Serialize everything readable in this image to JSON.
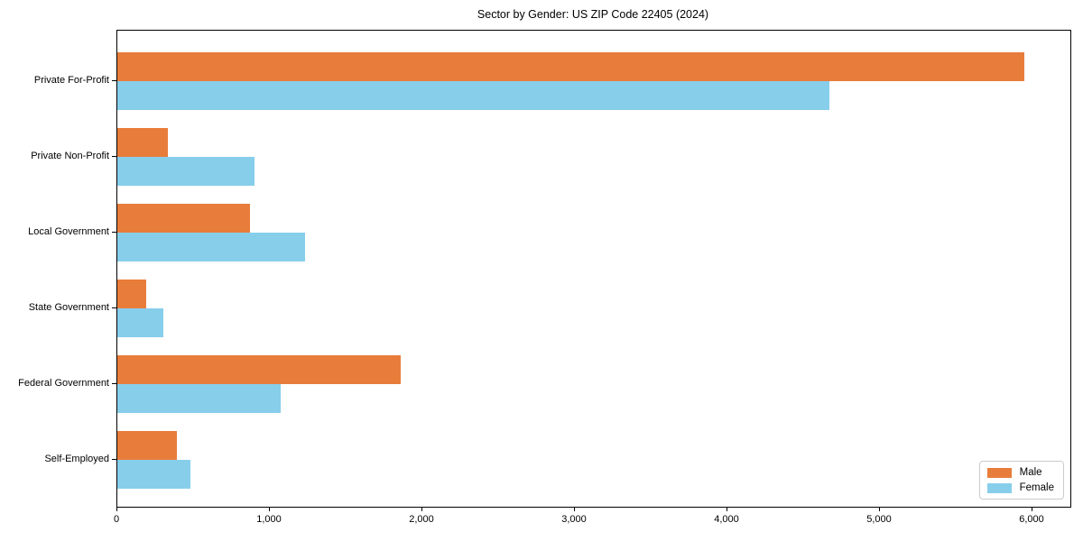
{
  "title": "Sector by Gender: US ZIP Code 22405 (2024)",
  "chart_data": {
    "type": "bar",
    "orientation": "horizontal",
    "title": "Sector by Gender: US ZIP Code 22405 (2024)",
    "xlabel": "",
    "ylabel": "",
    "categories": [
      "Private For-Profit",
      "Private Non-Profit",
      "Local Government",
      "State Government",
      "Federal Government",
      "Self-Employed"
    ],
    "series": [
      {
        "name": "Male",
        "color": "#e87d3b",
        "values": [
          5950,
          330,
          870,
          190,
          1860,
          390
        ]
      },
      {
        "name": "Female",
        "color": "#87ceeb",
        "values": [
          4670,
          900,
          1230,
          300,
          1070,
          480
        ]
      }
    ],
    "xlim": [
      0,
      6250
    ],
    "x_ticks": [
      0,
      1000,
      2000,
      3000,
      4000,
      5000,
      6000
    ],
    "x_tick_labels": [
      "0",
      "1,000",
      "2,000",
      "3,000",
      "4,000",
      "5,000",
      "6,000"
    ],
    "grid": false,
    "legend_position": "lower right",
    "legend_border_color": "#cccccc",
    "axis_color": "#000000"
  }
}
